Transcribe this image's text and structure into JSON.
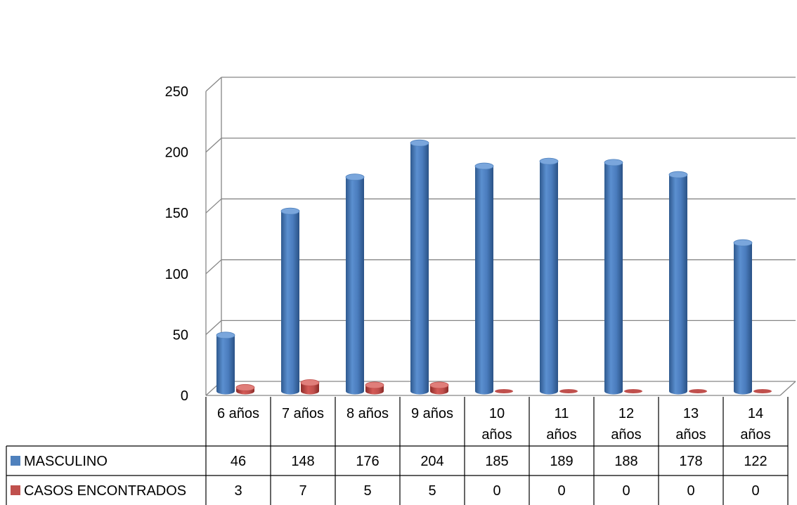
{
  "chart_data": {
    "type": "bar",
    "categories": [
      "6 años",
      "7 años",
      "8 años",
      "9 años",
      "10 años",
      "11 años",
      "12 años",
      "13 años",
      "14 años"
    ],
    "category_lines": [
      [
        "6 años"
      ],
      [
        "7 años"
      ],
      [
        "8 años"
      ],
      [
        "9 años"
      ],
      [
        "10",
        "años"
      ],
      [
        "11",
        "años"
      ],
      [
        "12",
        "años"
      ],
      [
        "13",
        "años"
      ],
      [
        "14",
        "años"
      ]
    ],
    "series": [
      {
        "name": "MASCULINO",
        "values": [
          46,
          148,
          176,
          204,
          185,
          189,
          188,
          178,
          122
        ],
        "color": "#4F81BD"
      },
      {
        "name": "CASOS ENCONTRADOS",
        "values": [
          3,
          7,
          5,
          5,
          0,
          0,
          0,
          0,
          0
        ],
        "color": "#C0504D"
      }
    ],
    "ylim": [
      0,
      250
    ],
    "yticks": [
      0,
      50,
      100,
      150,
      200,
      250
    ],
    "grid": true,
    "legend": "data-table",
    "style": "3d-cylinder"
  }
}
